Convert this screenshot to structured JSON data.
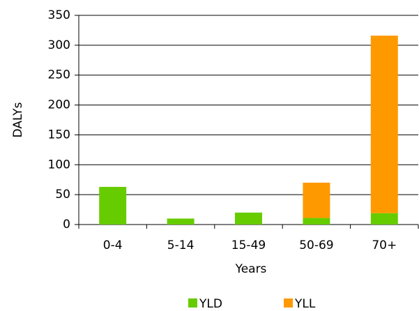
{
  "chart_data": {
    "type": "stacked_bar",
    "y_label": "DALYs",
    "x_label": "Years",
    "categories": [
      "0-4",
      "5-14",
      "15-49",
      "50-69",
      "70+"
    ],
    "series": [
      {
        "name": "YLD",
        "color": "#66cc00",
        "values": [
          63,
          10,
          20,
          11,
          19
        ]
      },
      {
        "name": "YLL",
        "color": "#ff9900",
        "values": [
          0,
          0,
          0,
          59,
          297
        ]
      }
    ],
    "ylim": [
      0,
      350
    ],
    "yticks": [
      0,
      50,
      100,
      150,
      200,
      250,
      300,
      350
    ],
    "grid": true
  }
}
